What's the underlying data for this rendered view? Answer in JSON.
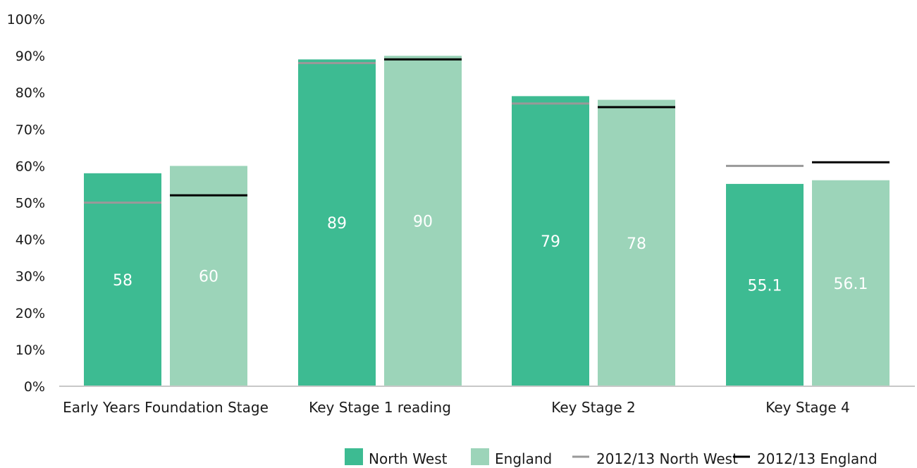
{
  "chart_data": {
    "type": "bar",
    "categories": [
      "Early Years Foundation Stage",
      "Key Stage 1 reading",
      "Key Stage 2",
      "Key Stage 4"
    ],
    "series": [
      {
        "name": "North West",
        "values": [
          58,
          89,
          79,
          55.1
        ],
        "labels": [
          "58",
          "89",
          "79",
          "55.1"
        ],
        "color": "#3dbb92"
      },
      {
        "name": "England",
        "values": [
          60,
          90,
          78,
          56.1
        ],
        "labels": [
          "60",
          "90",
          "78",
          "56.1"
        ],
        "color": "#9cd4b9"
      }
    ],
    "reference_series": [
      {
        "name": "2012/13 North West",
        "values": [
          50,
          88,
          77,
          60
        ],
        "color": "#999999"
      },
      {
        "name": "2012/13 England",
        "values": [
          52,
          89,
          76,
          61
        ],
        "color": "#000000"
      }
    ],
    "y_ticks": [
      "0%",
      "10%",
      "20%",
      "30%",
      "40%",
      "50%",
      "60%",
      "70%",
      "80%",
      "90%",
      "100%"
    ],
    "ylim": [
      0,
      100
    ],
    "legend_position": "bottom-right",
    "grid": false,
    "title": "",
    "xlabel": "",
    "ylabel": ""
  }
}
